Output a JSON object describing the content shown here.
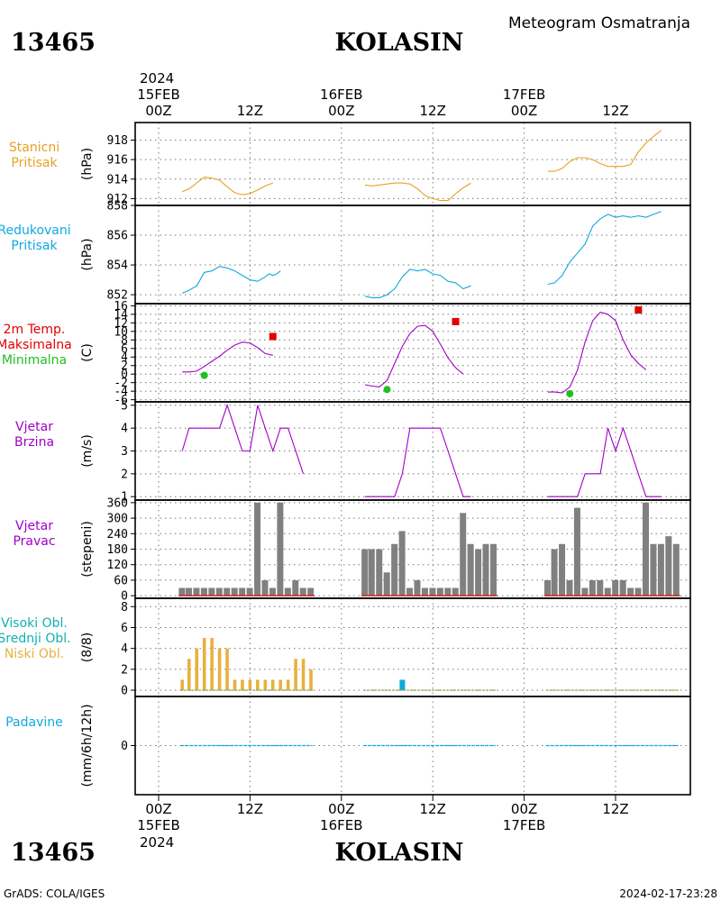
{
  "header": {
    "station_id": "13465",
    "station_name": "KOLASIN",
    "meteogram_title": "Meteogram Osmatranja",
    "year": "2024"
  },
  "footer": {
    "credit": "GrADS: COLA/IGES",
    "timestamp": "2024-02-17-23:28"
  },
  "time_axis": {
    "top_labels": [
      "00Z",
      "12Z",
      "00Z",
      "12Z",
      "00Z",
      "12Z"
    ],
    "bottom_labels": [
      "00Z",
      "12Z",
      "00Z",
      "12Z",
      "00Z",
      "12Z"
    ],
    "dates": [
      "15FEB",
      "16FEB",
      "17FEB"
    ]
  },
  "colors": {
    "orange": "#e8a020",
    "cyan": "#10a8e0",
    "magenta": "#a000c8",
    "red": "#e00000",
    "green": "#20c020",
    "teal": "#10b0b0",
    "gray": "#808080",
    "cloud_orange": "#e8b040",
    "precip_blue": "#10a8e0"
  },
  "chart_data": [
    {
      "type": "line",
      "id": "station_pressure",
      "label_lines": [
        "Stanicni",
        "Pritisak"
      ],
      "ylabel": "(hPa)",
      "ylim": [
        911.3,
        919.8
      ],
      "yticks": [
        912,
        914,
        916,
        918
      ],
      "series": [
        {
          "values": [
            [
              3.1,
              912.7
            ],
            [
              4,
              913
            ],
            [
              5,
              913.6
            ],
            [
              6,
              914.2
            ],
            [
              7,
              914.1
            ],
            [
              8,
              913.9
            ],
            [
              9,
              913.2
            ],
            [
              10,
              912.6
            ],
            [
              11,
              912.4
            ],
            [
              12,
              912.5
            ],
            [
              13,
              912.9
            ],
            [
              14,
              913.3
            ],
            [
              15,
              913.6
            ]
          ]
        },
        {
          "values": [
            [
              27.1,
              913.4
            ],
            [
              28,
              913.3
            ],
            [
              29,
              913.4
            ],
            [
              30,
              913.5
            ],
            [
              31,
              913.6
            ],
            [
              32,
              913.6
            ],
            [
              33,
              913.5
            ],
            [
              34,
              913
            ],
            [
              35,
              912.3
            ],
            [
              36,
              912
            ],
            [
              37,
              911.8
            ],
            [
              38,
              911.8
            ],
            [
              39,
              912.5
            ],
            [
              40,
              913.1
            ],
            [
              41,
              913.6
            ]
          ]
        },
        {
          "values": [
            [
              51.1,
              914.8
            ],
            [
              52,
              914.8
            ],
            [
              53,
              915.1
            ],
            [
              54,
              915.8
            ],
            [
              55,
              916.2
            ],
            [
              56,
              916.2
            ],
            [
              57,
              916
            ],
            [
              58,
              915.6
            ],
            [
              59,
              915.3
            ],
            [
              60,
              915.3
            ],
            [
              61,
              915.3
            ],
            [
              62,
              915.5
            ],
            [
              63,
              916.8
            ],
            [
              64,
              917.7
            ],
            [
              65,
              918.4
            ],
            [
              66,
              919
            ]
          ]
        }
      ]
    },
    {
      "type": "line",
      "id": "reduced_pressure",
      "label_lines": [
        "Redukovani",
        "Pritisak"
      ],
      "ylabel": "(hPa)",
      "ylim": [
        851.4,
        858
      ],
      "yticks": [
        852,
        854,
        856,
        858
      ],
      "series": [
        {
          "values": [
            [
              3.1,
              852.1
            ],
            [
              4,
              852.3
            ],
            [
              5,
              852.6
            ],
            [
              6,
              853.5
            ],
            [
              7,
              853.6
            ],
            [
              8,
              853.9
            ],
            [
              9,
              853.8
            ],
            [
              10,
              853.6
            ],
            [
              11,
              853.3
            ],
            [
              12,
              853
            ],
            [
              13,
              852.9
            ],
            [
              14,
              853.2
            ],
            [
              14.5,
              853.4
            ],
            [
              15,
              853.3
            ],
            [
              15.5,
              853.4
            ],
            [
              16,
              853.6
            ]
          ]
        },
        {
          "values": [
            [
              27.1,
              851.9
            ],
            [
              28,
              851.8
            ],
            [
              29,
              851.8
            ],
            [
              30,
              852
            ],
            [
              31,
              852.4
            ],
            [
              32,
              853.2
            ],
            [
              33,
              853.7
            ],
            [
              34,
              853.6
            ],
            [
              35,
              853.7
            ],
            [
              36,
              853.4
            ],
            [
              37,
              853.3
            ],
            [
              38,
              852.9
            ],
            [
              39,
              852.8
            ],
            [
              40,
              852.4
            ],
            [
              41,
              852.6
            ]
          ]
        },
        {
          "values": [
            [
              51.1,
              852.7
            ],
            [
              52,
              852.8
            ],
            [
              53,
              853.3
            ],
            [
              54,
              854.2
            ],
            [
              55,
              854.8
            ],
            [
              56,
              855.4
            ],
            [
              57,
              856.6
            ],
            [
              58,
              857.1
            ],
            [
              59,
              857.4
            ],
            [
              60,
              857.2
            ],
            [
              61,
              857.3
            ],
            [
              62,
              857.2
            ],
            [
              63,
              857.3
            ],
            [
              64,
              857.2
            ],
            [
              65,
              857.4
            ],
            [
              66,
              857.6
            ]
          ]
        }
      ]
    },
    {
      "type": "line",
      "id": "temperature",
      "label_lines": [
        "2m Temp.",
        "Maksimalna",
        "Minimalna"
      ],
      "ylabel": "(C)",
      "ylim": [
        -6.5,
        16.5
      ],
      "yticks": [
        -6,
        -4,
        -2,
        0,
        2,
        4,
        6,
        8,
        10,
        12,
        14,
        16
      ],
      "series": [
        {
          "values": [
            [
              3.1,
              0.5
            ],
            [
              4,
              0.5
            ],
            [
              5,
              0.7
            ],
            [
              6,
              1.8
            ],
            [
              7,
              3
            ],
            [
              8,
              4.2
            ],
            [
              9,
              5.6
            ],
            [
              10,
              6.8
            ],
            [
              11,
              7.5
            ],
            [
              12,
              7.3
            ],
            [
              13,
              6.2
            ],
            [
              14,
              4.8
            ],
            [
              15,
              4.4
            ]
          ]
        },
        {
          "values": [
            [
              27.1,
              -2.5
            ],
            [
              28,
              -2.8
            ],
            [
              29,
              -3
            ],
            [
              30,
              -1.5
            ],
            [
              31,
              2.5
            ],
            [
              32,
              6.5
            ],
            [
              33,
              9.5
            ],
            [
              34,
              11.2
            ],
            [
              35,
              11.4
            ],
            [
              36,
              10
            ],
            [
              37,
              7
            ],
            [
              38,
              3.8
            ],
            [
              39,
              1.5
            ],
            [
              40,
              0
            ]
          ]
        },
        {
          "values": [
            [
              51.1,
              -4.2
            ],
            [
              52,
              -4.2
            ],
            [
              53,
              -4.4
            ],
            [
              54,
              -3
            ],
            [
              55,
              1
            ],
            [
              56,
              7.5
            ],
            [
              57,
              12.5
            ],
            [
              58,
              14.5
            ],
            [
              59,
              14
            ],
            [
              60,
              12.5
            ],
            [
              61,
              8
            ],
            [
              62,
              4.5
            ],
            [
              63,
              2.5
            ],
            [
              64,
              1
            ]
          ]
        }
      ],
      "max_points": [
        [
          15,
          8.8
        ],
        [
          39,
          12.3
        ],
        [
          63,
          15
        ]
      ],
      "min_points": [
        [
          6,
          -0.3
        ],
        [
          30,
          -3.6
        ],
        [
          54,
          -4.6
        ]
      ]
    },
    {
      "type": "line",
      "id": "wind_speed",
      "label_lines": [
        "Vjetar",
        "Brzina"
      ],
      "ylabel": "(m/s)",
      "ylim": [
        0.85,
        5.15
      ],
      "yticks": [
        1,
        2,
        3,
        4,
        5
      ],
      "series": [
        {
          "values": [
            [
              3.1,
              3
            ],
            [
              4,
              4
            ],
            [
              5,
              4
            ],
            [
              6,
              4
            ],
            [
              7,
              4
            ],
            [
              8,
              4
            ],
            [
              9,
              5
            ],
            [
              10,
              4
            ],
            [
              11,
              3
            ],
            [
              12,
              3
            ],
            [
              13,
              5
            ],
            [
              14,
              4
            ],
            [
              15,
              3
            ],
            [
              16,
              4
            ],
            [
              17,
              4
            ],
            [
              18,
              3
            ],
            [
              19,
              2
            ]
          ]
        },
        {
          "values": [
            [
              27.1,
              1
            ],
            [
              28,
              1
            ],
            [
              29,
              1
            ],
            [
              30,
              1
            ],
            [
              31,
              1
            ],
            [
              32,
              2
            ],
            [
              33,
              4
            ],
            [
              34,
              4
            ],
            [
              35,
              4
            ],
            [
              36,
              4
            ],
            [
              37,
              4
            ],
            [
              38,
              3
            ],
            [
              39,
              2
            ],
            [
              40,
              1
            ],
            [
              41,
              1
            ]
          ]
        },
        {
          "values": [
            [
              51.1,
              1
            ],
            [
              52,
              1
            ],
            [
              53,
              1
            ],
            [
              54,
              1
            ],
            [
              55,
              1
            ],
            [
              56,
              2
            ],
            [
              57,
              2
            ],
            [
              58,
              2
            ],
            [
              59,
              4
            ],
            [
              60,
              3
            ],
            [
              61,
              4
            ],
            [
              62,
              3
            ],
            [
              63,
              2
            ],
            [
              64,
              1
            ],
            [
              65,
              1
            ],
            [
              66,
              1
            ]
          ]
        }
      ]
    },
    {
      "type": "bar",
      "id": "wind_direction",
      "label_lines": [
        "Vjetar",
        "Pravac"
      ],
      "ylabel": "(stepeni)",
      "ylim": [
        -10,
        370
      ],
      "yticks": [
        0,
        60,
        120,
        180,
        240,
        300,
        360
      ],
      "bars": [
        [
          3.1,
          30
        ],
        [
          4,
          30
        ],
        [
          5,
          30
        ],
        [
          6,
          30
        ],
        [
          7,
          30
        ],
        [
          8,
          30
        ],
        [
          9,
          30
        ],
        [
          10,
          30
        ],
        [
          11,
          30
        ],
        [
          12,
          30
        ],
        [
          13,
          360
        ],
        [
          14,
          60
        ],
        [
          15,
          30
        ],
        [
          16,
          360
        ],
        [
          17,
          30
        ],
        [
          18,
          60
        ],
        [
          19,
          30
        ],
        [
          20,
          30
        ],
        [
          27.1,
          180
        ],
        [
          28,
          180
        ],
        [
          29,
          180
        ],
        [
          30,
          90
        ],
        [
          31,
          200
        ],
        [
          32,
          250
        ],
        [
          33,
          30
        ],
        [
          34,
          60
        ],
        [
          35,
          30
        ],
        [
          36,
          30
        ],
        [
          37,
          30
        ],
        [
          38,
          30
        ],
        [
          39,
          30
        ],
        [
          40,
          320
        ],
        [
          41,
          200
        ],
        [
          42,
          180
        ],
        [
          43,
          200
        ],
        [
          44,
          200
        ],
        [
          51.1,
          60
        ],
        [
          52,
          180
        ],
        [
          53,
          200
        ],
        [
          54,
          60
        ],
        [
          55,
          340
        ],
        [
          56,
          30
        ],
        [
          57,
          60
        ],
        [
          58,
          60
        ],
        [
          59,
          30
        ],
        [
          60,
          60
        ],
        [
          61,
          60
        ],
        [
          62,
          30
        ],
        [
          63,
          30
        ],
        [
          64,
          360
        ],
        [
          65,
          200
        ],
        [
          66,
          200
        ],
        [
          67,
          230
        ],
        [
          68,
          200
        ]
      ]
    },
    {
      "type": "bar",
      "id": "cloudiness",
      "label_lines": [
        "Visoki Obl.",
        "Srednji Obl.",
        "Niski Obl."
      ],
      "ylabel": "(8/8)",
      "ylim": [
        -0.6,
        8.8
      ],
      "yticks": [
        0,
        2,
        4,
        6,
        8
      ],
      "low_clouds": [
        [
          3.1,
          1
        ],
        [
          4,
          3
        ],
        [
          5,
          4
        ],
        [
          6,
          5
        ],
        [
          7,
          5
        ],
        [
          8,
          4
        ],
        [
          9,
          4
        ],
        [
          10,
          1
        ],
        [
          11,
          1
        ],
        [
          12,
          1
        ],
        [
          13,
          1
        ],
        [
          14,
          1
        ],
        [
          15,
          1
        ],
        [
          16,
          1
        ],
        [
          17,
          1
        ],
        [
          18,
          3
        ],
        [
          19,
          3
        ],
        [
          20,
          2
        ]
      ],
      "high_clouds": [
        [
          32,
          1
        ]
      ]
    },
    {
      "type": "bar",
      "id": "precipitation",
      "label_lines": [
        "Padavine"
      ],
      "ylabel": "(mm/6h/12h)",
      "ylim": [
        -5,
        5
      ],
      "yticks": [
        0
      ],
      "values": []
    }
  ]
}
